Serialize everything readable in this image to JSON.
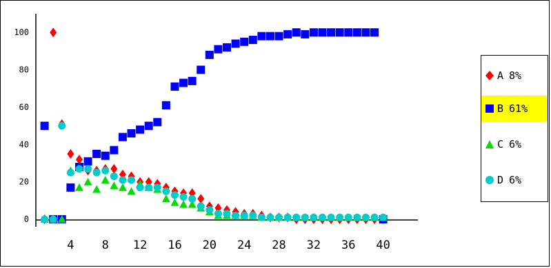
{
  "chart_data": {
    "type": "scatter",
    "xlim": [
      0,
      44
    ],
    "ylim": [
      -4,
      110
    ],
    "xticks": [
      4,
      8,
      12,
      16,
      20,
      24,
      28,
      32,
      36,
      40
    ],
    "yticks": [
      0,
      20,
      40,
      60,
      80,
      100
    ],
    "series": [
      {
        "name": "A",
        "percent": "8%",
        "color": "#ff0000",
        "marker": "diamond",
        "x": [
          1,
          2,
          3,
          4,
          5,
          6,
          7,
          8,
          9,
          10,
          11,
          12,
          13,
          14,
          15,
          16,
          17,
          18,
          19,
          20,
          21,
          22,
          23,
          24,
          25,
          26,
          27,
          28,
          29,
          30,
          31,
          32,
          33,
          34,
          35,
          36,
          37,
          38,
          39,
          40
        ],
        "y": [
          0,
          100,
          51,
          35,
          32,
          26,
          26,
          27,
          27,
          24,
          23,
          20,
          20,
          19,
          17,
          15,
          14,
          14,
          11,
          7,
          6,
          5,
          4,
          3,
          3,
          2,
          1,
          1,
          1,
          0,
          0,
          0,
          0,
          0,
          0,
          0,
          0,
          0,
          0,
          0
        ]
      },
      {
        "name": "B",
        "percent": "61%",
        "color": "#0000ff",
        "marker": "square",
        "x": [
          1,
          2,
          3,
          4,
          5,
          6,
          7,
          8,
          9,
          10,
          11,
          12,
          13,
          14,
          15,
          16,
          17,
          18,
          19,
          20,
          21,
          22,
          23,
          24,
          25,
          26,
          27,
          28,
          29,
          30,
          31,
          32,
          33,
          34,
          35,
          36,
          37,
          38,
          39,
          40
        ],
        "y": [
          50,
          0,
          0,
          17,
          28,
          31,
          35,
          34,
          37,
          44,
          46,
          48,
          50,
          52,
          61,
          71,
          73,
          74,
          80,
          88,
          91,
          92,
          94,
          95,
          96,
          98,
          98,
          98,
          99,
          100,
          99,
          100,
          100,
          100,
          100,
          100,
          100,
          100,
          100,
          0
        ]
      },
      {
        "name": "C",
        "percent": "6%",
        "color": "#00dd00",
        "marker": "triangle",
        "x": [
          1,
          2,
          3,
          4,
          5,
          6,
          7,
          8,
          9,
          10,
          11,
          12,
          13,
          14,
          15,
          16,
          17,
          18,
          19,
          20,
          21,
          22,
          23,
          24,
          25,
          26,
          27,
          28,
          29,
          30,
          31,
          32,
          33,
          34,
          35,
          36,
          37,
          38,
          39,
          40
        ],
        "y": [
          0,
          0,
          0,
          26,
          17,
          20,
          16,
          21,
          18,
          17,
          15,
          19,
          17,
          16,
          11,
          9,
          8,
          8,
          6,
          4,
          2,
          2,
          2,
          2,
          2,
          1,
          1,
          1,
          1,
          1,
          1,
          1,
          1,
          1,
          1,
          1,
          1,
          1,
          1,
          1
        ]
      },
      {
        "name": "D",
        "percent": "6%",
        "color": "#00cccc",
        "marker": "circle",
        "x": [
          1,
          2,
          3,
          4,
          5,
          6,
          7,
          8,
          9,
          10,
          11,
          12,
          13,
          14,
          15,
          16,
          17,
          18,
          19,
          20,
          21,
          22,
          23,
          24,
          25,
          26,
          27,
          28,
          29,
          30,
          31,
          32,
          33,
          34,
          35,
          36,
          37,
          38,
          39,
          40
        ],
        "y": [
          0,
          0,
          50,
          25,
          27,
          27,
          25,
          26,
          23,
          21,
          21,
          17,
          17,
          17,
          15,
          13,
          12,
          11,
          7,
          5,
          3,
          3,
          2,
          2,
          2,
          1,
          1,
          1,
          1,
          1,
          1,
          1,
          1,
          1,
          1,
          1,
          1,
          1,
          1,
          1
        ]
      }
    ],
    "legend": {
      "position": "right",
      "highlighted": "B",
      "highlight_color": "#ffff00"
    }
  }
}
